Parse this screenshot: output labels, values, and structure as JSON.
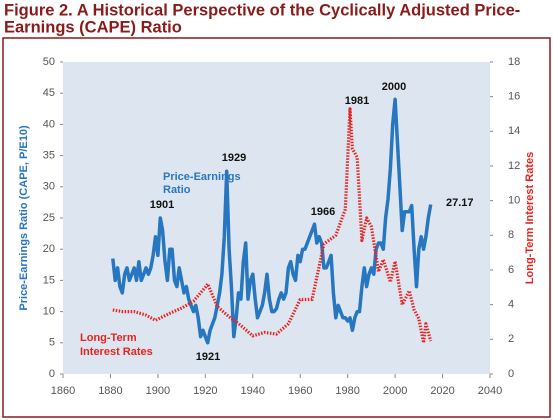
{
  "chart_data": {
    "type": "line",
    "title": [
      "Figure 2. A Historical Perspective of the Cyclically Adjusted Price-",
      "Earnings (CAPE) Ratio"
    ],
    "ylabel": "Price-Earnings Ratio (CAPE, P/E10)",
    "y2label": "Long-Term Interest Rates",
    "xlim": [
      1860,
      2040
    ],
    "xticks": [
      1860,
      1880,
      1900,
      1920,
      1940,
      1960,
      1980,
      2000,
      2020,
      2040
    ],
    "ylim": [
      0,
      50
    ],
    "yticks": [
      0,
      5,
      10,
      15,
      20,
      25,
      30,
      35,
      40,
      45,
      50
    ],
    "y2lim": [
      0,
      18
    ],
    "y2ticks": [
      0,
      2,
      4,
      6,
      8,
      10,
      12,
      14,
      16,
      18
    ],
    "series": [
      {
        "name": [
          "Price-Earnings",
          "Ratio"
        ],
        "color": "#2776c0",
        "axis": "y",
        "x": [
          1881,
          1882,
          1883,
          1884,
          1885,
          1886,
          1887,
          1888,
          1889,
          1890,
          1891,
          1892,
          1893,
          1894,
          1895,
          1896,
          1897,
          1898,
          1899,
          1900,
          1901,
          1902,
          1903,
          1904,
          1905,
          1906,
          1907,
          1908,
          1909,
          1910,
          1911,
          1912,
          1913,
          1914,
          1915,
          1916,
          1917,
          1918,
          1919,
          1920,
          1921,
          1922,
          1923,
          1924,
          1925,
          1926,
          1927,
          1928,
          1929,
          1930,
          1931,
          1932,
          1933,
          1934,
          1935,
          1936,
          1937,
          1938,
          1939,
          1940,
          1941,
          1942,
          1943,
          1944,
          1945,
          1946,
          1947,
          1948,
          1949,
          1950,
          1951,
          1952,
          1953,
          1954,
          1955,
          1956,
          1957,
          1958,
          1959,
          1960,
          1961,
          1962,
          1963,
          1964,
          1965,
          1966,
          1967,
          1968,
          1969,
          1970,
          1971,
          1972,
          1973,
          1974,
          1975,
          1976,
          1977,
          1978,
          1979,
          1980,
          1981,
          1982,
          1983,
          1984,
          1985,
          1986,
          1987,
          1988,
          1989,
          1990,
          1991,
          1992,
          1993,
          1994,
          1995,
          1996,
          1997,
          1998,
          1999,
          2000,
          2001,
          2002,
          2003,
          2004,
          2005,
          2006,
          2007,
          2008,
          2009,
          2010,
          2011,
          2012,
          2013,
          2014,
          2015
        ],
        "values": [
          18.5,
          15,
          17,
          14,
          13,
          16,
          17,
          15,
          16,
          17,
          15,
          18,
          15,
          16,
          17,
          16,
          17,
          19,
          22,
          19,
          25,
          23,
          18,
          15,
          20,
          20,
          15,
          14,
          17,
          15,
          13,
          14,
          12,
          11,
          10,
          11,
          9,
          6,
          7,
          6,
          5,
          7,
          8,
          9,
          11,
          13,
          16,
          22,
          32.5,
          20,
          14,
          6,
          9,
          13,
          12,
          18,
          21,
          12,
          15,
          16,
          12,
          9,
          10,
          11,
          13,
          16,
          12,
          10,
          10,
          10.5,
          12,
          13,
          12,
          13,
          17,
          18,
          16,
          15,
          19,
          18,
          20,
          20,
          21,
          22,
          23,
          24,
          21,
          22,
          21,
          17,
          17,
          18,
          19,
          13,
          9,
          11,
          10,
          9,
          9,
          8.5,
          9,
          7,
          9,
          10,
          10,
          14,
          17,
          14,
          16,
          17,
          16,
          20,
          21,
          21,
          20,
          25,
          28,
          33,
          40,
          44,
          37,
          30,
          23,
          26,
          26,
          26,
          27,
          20,
          14,
          20,
          22,
          20,
          22,
          25,
          27.17
        ]
      },
      {
        "name": [
          "Long-Term",
          "Interest Rates"
        ],
        "color": "#e8241f",
        "axis": "y2",
        "x": [
          1881,
          1885,
          1890,
          1895,
          1899,
          1905,
          1910,
          1915,
          1920,
          1921,
          1925,
          1930,
          1935,
          1940,
          1945,
          1950,
          1955,
          1960,
          1965,
          1970,
          1975,
          1979,
          1981,
          1982,
          1984,
          1986,
          1988,
          1990,
          1993,
          1995,
          1998,
          2000,
          2003,
          2006,
          2008,
          2010,
          2012,
          2013,
          2015
        ],
        "values": [
          3.7,
          3.6,
          3.6,
          3.4,
          3.1,
          3.5,
          3.8,
          4.2,
          5.0,
          5.2,
          3.9,
          3.3,
          2.8,
          2.2,
          2.4,
          2.3,
          2.9,
          4.3,
          4.3,
          7.5,
          8.0,
          9.5,
          15.3,
          13,
          12.5,
          7.7,
          9,
          8.5,
          5.9,
          6.6,
          5.3,
          6.5,
          4.0,
          4.8,
          3.7,
          3.2,
          1.8,
          2.9,
          1.9
        ]
      }
    ],
    "annotations": [
      "1901",
      "1929",
      "1921",
      "1966",
      "1981",
      "2000",
      "27.17"
    ]
  }
}
